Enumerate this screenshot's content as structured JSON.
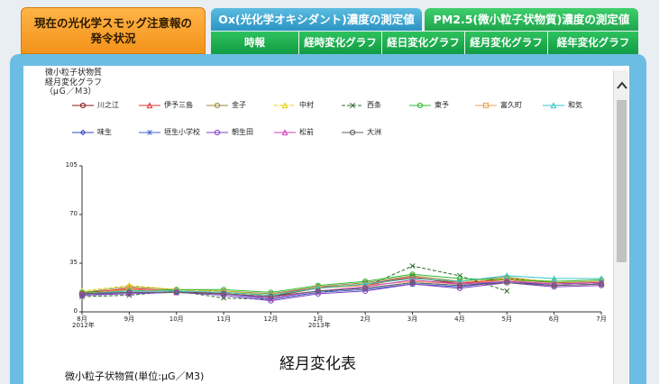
{
  "tabs": {
    "smog_line1": "現在の光化学スモッグ注意報の",
    "smog_line2": "発令状況",
    "ox": "Ox(光化学オキシダント)濃度の測定値",
    "pm": "PM2.5(微小粒子状物質)濃度の測定値"
  },
  "subtabs": [
    "時報",
    "経時変化グラフ",
    "経日変化グラフ",
    "経月変化グラフ",
    "経年変化グラフ"
  ],
  "chart_header": {
    "line1": "微小粒子状物質",
    "line2": "経月変化グラフ",
    "line3": "（μＧ／Ｍ3）"
  },
  "section_title": "経月変化表",
  "unit_label": "微小粒子状物質(単位:μG／M3)",
  "icons": {
    "scroll_up": "chevron-up-icon"
  },
  "chart_data": {
    "type": "line",
    "categories": [
      "8月",
      "9月",
      "10月",
      "11月",
      "12月",
      "1月",
      "2月",
      "3月",
      "4月",
      "5月",
      "6月",
      "7月"
    ],
    "x_year_labels": [
      {
        "index": 0,
        "label": "2012年"
      },
      {
        "index": 5,
        "label": "2013年"
      }
    ],
    "yticks": [
      0,
      35,
      70,
      105
    ],
    "ylim": [
      0,
      105
    ],
    "title": "",
    "xlabel": "",
    "ylabel": "",
    "grid": false,
    "series": [
      {
        "name": "川之江",
        "color": "#8b1a1a",
        "marker": "circle",
        "dash": "",
        "values": [
          14,
          16,
          15,
          13,
          11,
          17,
          20,
          25,
          20,
          24,
          21,
          21
        ]
      },
      {
        "name": "伊予三島",
        "color": "#e03030",
        "marker": "triangle",
        "dash": "",
        "values": [
          13,
          17,
          15,
          14,
          12,
          18,
          19,
          25,
          21,
          23,
          20,
          21
        ]
      },
      {
        "name": "金子",
        "color": "#9b8a3a",
        "marker": "circle",
        "dash": "",
        "values": [
          14,
          18,
          16,
          15,
          13,
          18,
          21,
          26,
          22,
          25,
          21,
          22
        ]
      },
      {
        "name": "中村",
        "color": "#e0d000",
        "marker": "triangle",
        "dash": "4,2",
        "values": [
          15,
          19,
          16,
          15,
          12,
          17,
          20,
          24,
          22,
          24,
          22,
          23
        ]
      },
      {
        "name": "西条",
        "color": "#2e6b2e",
        "marker": "cross",
        "dash": "4,2",
        "values": [
          11,
          12,
          15,
          10,
          9,
          14,
          18,
          33,
          26,
          15,
          null,
          null
        ]
      },
      {
        "name": "東予",
        "color": "#2fb82f",
        "marker": "circle",
        "dash": "",
        "values": [
          14,
          15,
          16,
          16,
          14,
          19,
          22,
          27,
          24,
          23,
          22,
          23
        ]
      },
      {
        "name": "富久町",
        "color": "#e8a050",
        "marker": "square",
        "dash": "",
        "values": [
          13,
          16,
          15,
          14,
          12,
          17,
          19,
          22,
          20,
          23,
          20,
          22
        ]
      },
      {
        "name": "和気",
        "color": "#30c8c8",
        "marker": "triangle",
        "dash": "",
        "values": [
          13,
          15,
          15,
          14,
          12,
          17,
          20,
          24,
          22,
          26,
          24,
          24
        ]
      },
      {
        "name": "味生",
        "color": "#3048b8",
        "marker": "diamond",
        "dash": "",
        "values": [
          13,
          14,
          14,
          13,
          10,
          15,
          17,
          21,
          19,
          22,
          19,
          20
        ]
      },
      {
        "name": "垣生小学校",
        "color": "#4060d0",
        "marker": "star",
        "dash": "",
        "values": [
          12,
          14,
          14,
          13,
          9,
          14,
          16,
          20,
          18,
          22,
          20,
          21
        ]
      },
      {
        "name": "朝生田",
        "color": "#8040c0",
        "marker": "circle",
        "dash": "",
        "values": [
          12,
          13,
          14,
          12,
          8,
          13,
          15,
          20,
          17,
          21,
          18,
          19
        ]
      },
      {
        "name": "松前",
        "color": "#d040c0",
        "marker": "triangle",
        "dash": "",
        "values": [
          13,
          14,
          14,
          13,
          10,
          15,
          18,
          23,
          20,
          22,
          20,
          21
        ]
      },
      {
        "name": "大洲",
        "color": "#606060",
        "marker": "circle",
        "dash": "",
        "values": [
          13,
          14,
          14,
          13,
          11,
          15,
          17,
          21,
          19,
          21,
          19,
          20
        ]
      }
    ]
  }
}
